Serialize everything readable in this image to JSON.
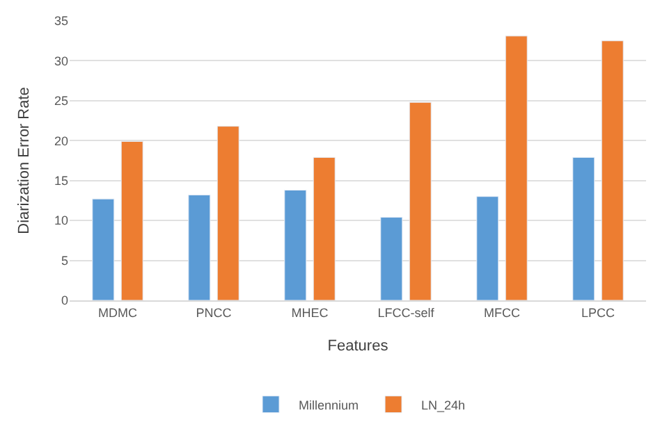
{
  "chart_data": {
    "type": "bar",
    "xlabel": "Features",
    "ylabel": "Diarization Error Rate",
    "categories": [
      "MDMC",
      "PNCC",
      "MHEC",
      "LFCC-self",
      "MFCC",
      "LPCC"
    ],
    "series": [
      {
        "name": "Millennium",
        "color": "#5b9bd5",
        "values": [
          12.7,
          13.2,
          13.8,
          10.4,
          13.0,
          17.9
        ]
      },
      {
        "name": "LN_24h",
        "color": "#ed7d31",
        "values": [
          19.9,
          21.8,
          17.9,
          24.8,
          33.1,
          32.5
        ]
      }
    ],
    "ylim": [
      0,
      35
    ],
    "yticks": [
      0,
      5,
      10,
      15,
      20,
      25,
      30,
      35
    ],
    "grid": "y",
    "legend": "bottom"
  }
}
